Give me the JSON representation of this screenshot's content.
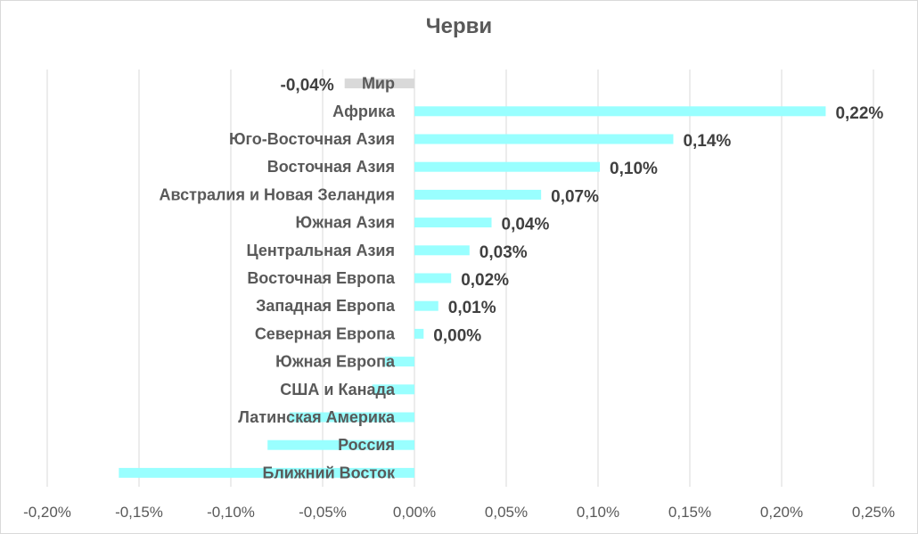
{
  "chart_data": {
    "type": "bar",
    "orientation": "horizontal",
    "title": "Черви",
    "xlabel": "",
    "ylabel": "",
    "xlim": [
      -0.2,
      0.25
    ],
    "grid": true,
    "legend": "none",
    "categories": [
      "Мир",
      "Африка",
      "Юго-Восточная Азия",
      "Восточная Азия",
      "Австралия и Новая Зеландия",
      "Южная Азия",
      "Центральная Азия",
      "Восточная Европа",
      "Западная Европа",
      "Северная Европа",
      "Южная Европа",
      "США и Канада",
      "Латинская Америка",
      "Россия",
      "Ближний Восток"
    ],
    "values": [
      -0.038,
      0.224,
      0.141,
      0.101,
      0.069,
      0.042,
      0.03,
      0.02,
      0.013,
      0.005,
      -0.016,
      -0.023,
      -0.068,
      -0.08,
      -0.161
    ],
    "data_labels": [
      "-0,04%",
      "0,22%",
      "0,14%",
      "0,10%",
      "0,07%",
      "0,04%",
      "0,03%",
      "0,02%",
      "0,01%",
      "0,00%",
      null,
      null,
      null,
      null,
      null
    ],
    "x_ticks": [
      -0.2,
      -0.15,
      -0.1,
      -0.05,
      0,
      0.05,
      0.1,
      0.15,
      0.2,
      0.25
    ],
    "x_tick_labels": [
      "-0,20%",
      "-0,15%",
      "-0,10%",
      "-0,05%",
      "0,00%",
      "0,05%",
      "0,10%",
      "0,15%",
      "0,20%",
      "0,25%"
    ],
    "colors": {
      "bar": "#99ffff",
      "world_bar": "#d9d9d9",
      "gridline": "#d9d9d9",
      "text": "#595959",
      "data_label": "#404040"
    }
  }
}
